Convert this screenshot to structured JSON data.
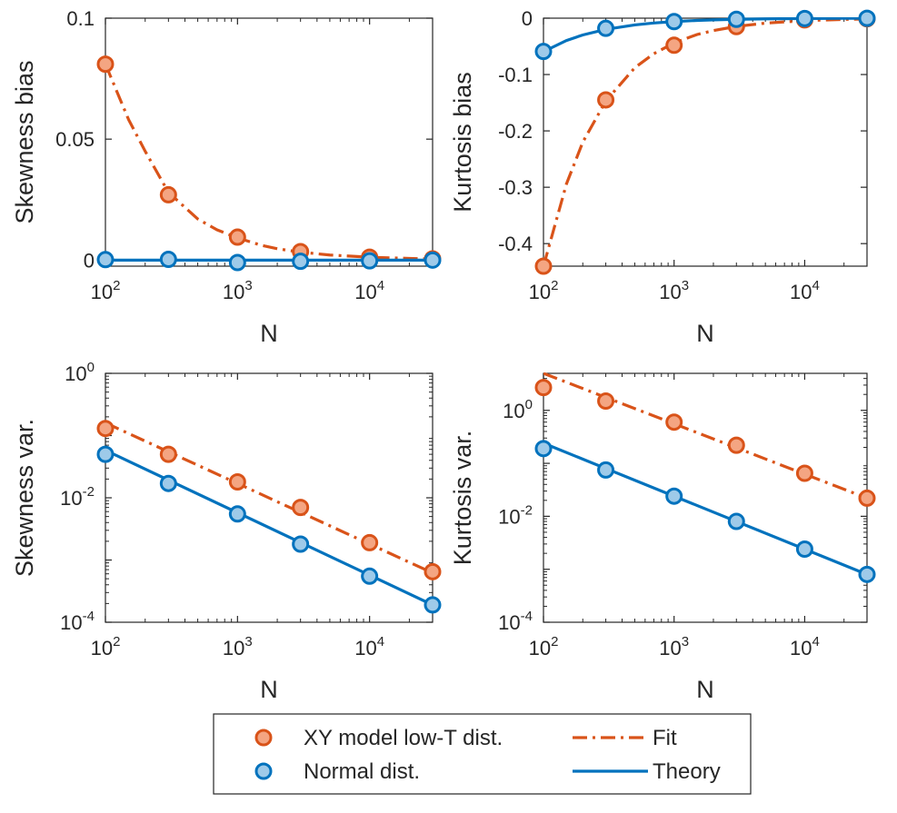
{
  "chart_data": [
    {
      "id": "skew-bias",
      "type": "line",
      "xscale": "log",
      "yscale": "linear",
      "xlim": [
        100,
        30000
      ],
      "ylim": [
        -0.0025,
        0.1
      ],
      "x_ticks": [
        100,
        1000,
        10000
      ],
      "x_tick_labels": [
        {
          "base": "10",
          "exp": "2"
        },
        {
          "base": "10",
          "exp": "3"
        },
        {
          "base": "10",
          "exp": "4"
        }
      ],
      "y_ticks": [
        0,
        0.05,
        0.1
      ],
      "y_tick_labels": [
        "0",
        "0.05",
        "0.1"
      ],
      "xlabel": "N",
      "ylabel": "Skewness bias",
      "series": [
        {
          "name": "XY model low-T dist.",
          "role": "markers",
          "x": [
            100,
            300,
            1000,
            3000,
            10000,
            30000
          ],
          "y": [
            0.081,
            0.027,
            0.0095,
            0.0035,
            0.0012,
            0.0005
          ]
        },
        {
          "name": "Normal dist.",
          "role": "markers",
          "x": [
            100,
            300,
            1000,
            3000,
            10000,
            30000
          ],
          "y": [
            0.0002,
            0.0003,
            -0.001,
            -0.0005,
            -0.0003,
            0.0
          ]
        },
        {
          "name": "Fit",
          "role": "line",
          "x": [
            100,
            150,
            200,
            300,
            500,
            700,
            1000,
            1500,
            2000,
            3000,
            5000,
            10000,
            20000,
            30000
          ],
          "y": [
            0.081,
            0.058,
            0.045,
            0.028,
            0.017,
            0.0125,
            0.0092,
            0.0062,
            0.0047,
            0.0033,
            0.0021,
            0.0012,
            0.0007,
            0.0005
          ]
        },
        {
          "name": "Theory",
          "role": "line",
          "x": [
            100,
            30000
          ],
          "y": [
            0,
            0
          ]
        }
      ]
    },
    {
      "id": "kurt-bias",
      "type": "line",
      "xscale": "log",
      "yscale": "linear",
      "xlim": [
        100,
        30000
      ],
      "ylim": [
        -0.44,
        0.0
      ],
      "x_ticks": [
        100,
        1000,
        10000
      ],
      "x_tick_labels": [
        {
          "base": "10",
          "exp": "2"
        },
        {
          "base": "10",
          "exp": "3"
        },
        {
          "base": "10",
          "exp": "4"
        }
      ],
      "y_ticks": [
        0,
        -0.1,
        -0.2,
        -0.3,
        -0.4
      ],
      "y_tick_labels": [
        "0",
        "-0.1",
        "-0.2",
        "-0.3",
        "-0.4"
      ],
      "xlabel": "N",
      "ylabel": "Kurtosis bias",
      "series": [
        {
          "name": "XY model low-T dist.",
          "role": "markers",
          "x": [
            100,
            300,
            1000,
            3000,
            10000,
            30000
          ],
          "y": [
            -0.44,
            -0.145,
            -0.048,
            -0.015,
            -0.003,
            -0.001
          ]
        },
        {
          "name": "Normal dist.",
          "role": "markers",
          "x": [
            100,
            300,
            1000,
            3000,
            10000,
            30000
          ],
          "y": [
            -0.059,
            -0.018,
            -0.006,
            -0.002,
            -0.0006,
            -0.0002
          ]
        },
        {
          "name": "Fit",
          "role": "line",
          "x": [
            100,
            150,
            200,
            300,
            500,
            700,
            1000,
            1500,
            2000,
            3000,
            5000,
            10000,
            20000,
            30000
          ],
          "y": [
            -0.44,
            -0.294,
            -0.22,
            -0.147,
            -0.088,
            -0.063,
            -0.044,
            -0.029,
            -0.022,
            -0.0147,
            -0.0088,
            -0.0044,
            -0.0022,
            -0.0015
          ]
        },
        {
          "name": "Theory",
          "role": "line",
          "x": [
            100,
            150,
            200,
            300,
            500,
            700,
            1000,
            1500,
            2000,
            3000,
            5000,
            10000,
            20000,
            30000
          ],
          "y": [
            -0.0594,
            -0.0396,
            -0.0298,
            -0.0199,
            -0.012,
            -0.0086,
            -0.006,
            -0.004,
            -0.003,
            -0.002,
            -0.0012,
            -0.0006,
            -0.0003,
            -0.0002
          ]
        }
      ]
    },
    {
      "id": "skew-var",
      "type": "line",
      "xscale": "log",
      "yscale": "log",
      "xlim": [
        100,
        30000
      ],
      "ylim": [
        0.0001,
        1
      ],
      "x_ticks": [
        100,
        1000,
        10000
      ],
      "x_tick_labels": [
        {
          "base": "10",
          "exp": "2"
        },
        {
          "base": "10",
          "exp": "3"
        },
        {
          "base": "10",
          "exp": "4"
        }
      ],
      "y_ticks": [
        0.0001,
        0.01,
        1
      ],
      "y_tick_labels": [
        {
          "base": "10",
          "exp": "-4"
        },
        {
          "base": "10",
          "exp": "-2"
        },
        {
          "base": "10",
          "exp": "0"
        }
      ],
      "xlabel": "N",
      "ylabel": "Skewness var.",
      "series": [
        {
          "name": "XY model low-T dist.",
          "role": "markers",
          "x": [
            100,
            300,
            1000,
            3000,
            10000,
            30000
          ],
          "y": [
            0.13,
            0.05,
            0.018,
            0.007,
            0.0019,
            0.00065
          ]
        },
        {
          "name": "Normal dist.",
          "role": "markers",
          "x": [
            100,
            300,
            1000,
            3000,
            10000,
            30000
          ],
          "y": [
            0.05,
            0.017,
            0.0055,
            0.0018,
            0.00055,
            0.00019
          ]
        },
        {
          "name": "Fit",
          "role": "line",
          "x": [
            100,
            30000
          ],
          "y": [
            0.16,
            0.00062
          ]
        },
        {
          "name": "Theory",
          "role": "line",
          "x": [
            100,
            30000
          ],
          "y": [
            0.058,
            0.00019
          ]
        }
      ]
    },
    {
      "id": "kurt-var",
      "type": "line",
      "xscale": "log",
      "yscale": "log",
      "xlim": [
        100,
        30000
      ],
      "ylim": [
        0.0001,
        5
      ],
      "x_ticks": [
        100,
        1000,
        10000
      ],
      "x_tick_labels": [
        {
          "base": "10",
          "exp": "2"
        },
        {
          "base": "10",
          "exp": "3"
        },
        {
          "base": "10",
          "exp": "4"
        }
      ],
      "y_ticks": [
        0.0001,
        0.01,
        1
      ],
      "y_tick_labels": [
        {
          "base": "10",
          "exp": "-4"
        },
        {
          "base": "10",
          "exp": "-2"
        },
        {
          "base": "10",
          "exp": "0"
        }
      ],
      "xlabel": "N",
      "ylabel": "Kurtosis var.",
      "series": [
        {
          "name": "XY model low-T dist.",
          "role": "markers",
          "x": [
            100,
            300,
            1000,
            3000,
            10000,
            30000
          ],
          "y": [
            2.7,
            1.5,
            0.6,
            0.22,
            0.065,
            0.022
          ]
        },
        {
          "name": "Normal dist.",
          "role": "markers",
          "x": [
            100,
            300,
            1000,
            3000,
            10000,
            30000
          ],
          "y": [
            0.19,
            0.075,
            0.024,
            0.008,
            0.0024,
            0.0008
          ]
        },
        {
          "name": "Fit",
          "role": "line",
          "x": [
            100,
            30000
          ],
          "y": [
            5.0,
            0.022
          ]
        },
        {
          "name": "Theory",
          "role": "line",
          "x": [
            100,
            30000
          ],
          "y": [
            0.24,
            0.0008
          ]
        }
      ]
    }
  ],
  "legend": {
    "entries": [
      {
        "label": "XY model low-T dist.",
        "kind": "marker",
        "color": "orange"
      },
      {
        "label": "Normal dist.",
        "kind": "marker",
        "color": "blue"
      },
      {
        "label": "Fit",
        "kind": "dashdot",
        "color": "orange"
      },
      {
        "label": "Theory",
        "kind": "solid",
        "color": "blue"
      }
    ]
  },
  "colors": {
    "orange": "#D95319",
    "orange_fill": "#F4A582",
    "blue": "#0072BD",
    "blue_fill": "#9ECAE9",
    "axis": "#262626"
  }
}
